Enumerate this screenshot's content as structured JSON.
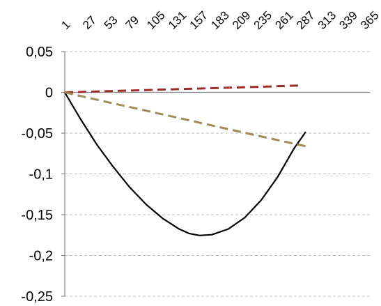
{
  "chart_data": {
    "type": "line",
    "title": "",
    "xlabel": "",
    "ylabel": "",
    "grid": true,
    "legend": "none",
    "x_axis_position": "top",
    "xlim": [
      1,
      372
    ],
    "ylim": [
      -0.25,
      0.05
    ],
    "x_ticks": [
      1,
      27,
      53,
      79,
      105,
      131,
      157,
      183,
      209,
      235,
      261,
      287,
      313,
      339,
      365
    ],
    "x_tick_labels": [
      "1",
      "27",
      "53",
      "79",
      "105",
      "131",
      "157",
      "183",
      "209",
      "235",
      "261",
      "287",
      "313",
      "339",
      "365"
    ],
    "y_ticks": [
      0.05,
      0,
      -0.05,
      -0.1,
      -0.15,
      -0.2,
      -0.25
    ],
    "y_tick_labels": [
      "0,05",
      "0",
      "-0,05",
      "-0,1",
      "-0,15",
      "-0,2",
      "-0,25"
    ],
    "series": [
      {
        "color": "#000000",
        "style": "solid",
        "x": [
          1,
          20,
          40,
          60,
          80,
          100,
          120,
          140,
          152,
          165,
          180,
          200,
          220,
          240,
          260,
          280,
          294
        ],
        "y": [
          0,
          -0.0325,
          -0.064,
          -0.0915,
          -0.1165,
          -0.1375,
          -0.1545,
          -0.1675,
          -0.173,
          -0.1755,
          -0.1745,
          -0.1675,
          -0.1535,
          -0.132,
          -0.1035,
          -0.0685,
          -0.0485
        ]
      },
      {
        "color": "#9b2d2a",
        "style": "dashed",
        "x": [
          1,
          50,
          100,
          150,
          200,
          250,
          290
        ],
        "y": [
          0,
          0.0014,
          0.0028,
          0.0043,
          0.0057,
          0.0072,
          0.0085
        ]
      },
      {
        "color": "#9e8b57",
        "style": "dashed",
        "x": [
          1,
          50,
          100,
          150,
          200,
          250,
          296
        ],
        "y": [
          0,
          -0.0113,
          -0.0225,
          -0.0338,
          -0.0451,
          -0.0563,
          -0.0665
        ]
      }
    ]
  }
}
